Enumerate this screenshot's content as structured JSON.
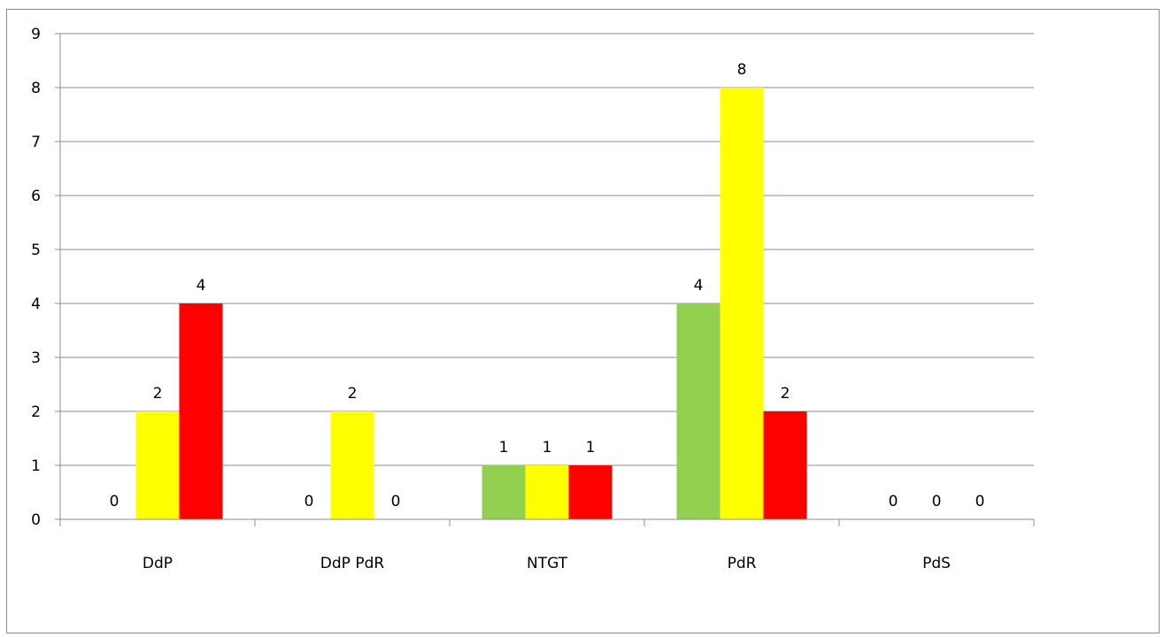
{
  "chart_data": {
    "type": "bar",
    "categories": [
      "DdP",
      "DdP  PdR",
      "NTGT",
      "PdR",
      "PdS"
    ],
    "series": [
      {
        "color": "#92d050",
        "values": [
          0,
          0,
          1,
          4,
          0
        ]
      },
      {
        "color": "#ffff00",
        "values": [
          2,
          2,
          1,
          8,
          0
        ]
      },
      {
        "color": "#ff0000",
        "values": [
          4,
          0,
          1,
          2,
          0
        ]
      }
    ],
    "ylim": [
      0,
      9
    ],
    "y_ticks": [
      "0",
      "1",
      "2",
      "3",
      "4",
      "5",
      "6",
      "7",
      "8",
      "9"
    ],
    "grid": true,
    "data_labels": true,
    "legend": "none",
    "title": "",
    "xlabel": "",
    "ylabel": ""
  }
}
